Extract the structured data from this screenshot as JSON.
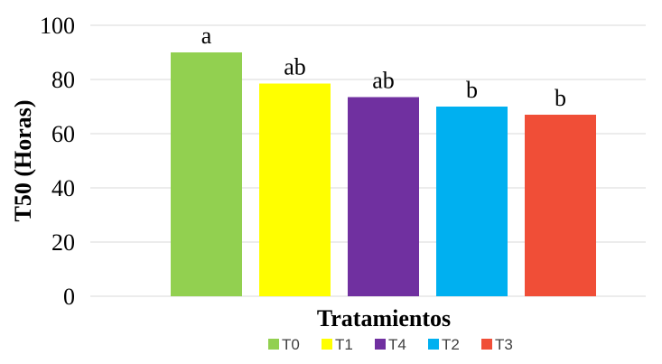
{
  "chart_data": {
    "type": "bar",
    "xlabel": "Tratamientos",
    "ylabel": "T50 (Horas)",
    "ylim": [
      0,
      100
    ],
    "yticks": [
      0,
      20,
      40,
      60,
      80,
      100
    ],
    "grid": true,
    "legend_position": "bottom",
    "series": [
      {
        "name": "T0",
        "value": 90,
        "label": "a",
        "color": "#92d050"
      },
      {
        "name": "T1",
        "value": 78.5,
        "label": "ab",
        "color": "#ffff00"
      },
      {
        "name": "T4",
        "value": 73.5,
        "label": "ab",
        "color": "#7030a0"
      },
      {
        "name": "T2",
        "value": 70,
        "label": "b",
        "color": "#00b0f0"
      },
      {
        "name": "T3",
        "value": 67,
        "label": "b",
        "color": "#f04e37"
      }
    ]
  }
}
